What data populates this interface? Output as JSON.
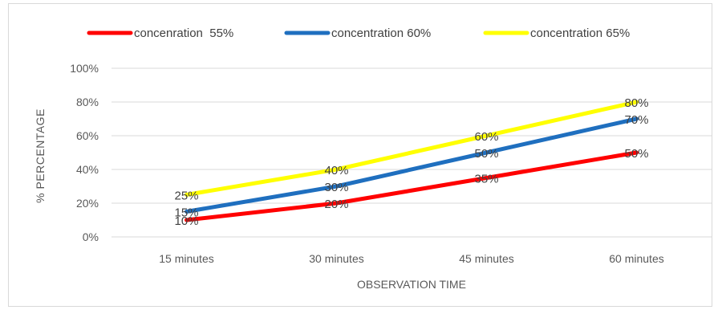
{
  "chart_data": {
    "type": "line",
    "categories": [
      "15 minutes",
      "30 minutes",
      "45 minutes",
      "60 minutes"
    ],
    "series": [
      {
        "name": "concenration  55%",
        "values": [
          10,
          20,
          35,
          50
        ],
        "color": "#ff0000",
        "labels": [
          "10%",
          "20%",
          "35%",
          "50%"
        ]
      },
      {
        "name": "concentration 60%",
        "values": [
          15,
          30,
          50,
          70
        ],
        "color": "#1f6fbf",
        "labels": [
          "15%",
          "30%",
          "50%",
          "70%"
        ]
      },
      {
        "name": "concentration 65%",
        "values": [
          25,
          40,
          60,
          80
        ],
        "color": "#ffff00",
        "labels": [
          "25%",
          "40%",
          "60%",
          "80%"
        ]
      }
    ],
    "xlabel": "OBSERVATION TIME",
    "ylabel": "% PERCENTAGE",
    "ylim": [
      0,
      100
    ],
    "yticks": [
      0,
      20,
      40,
      60,
      80,
      100
    ],
    "ytick_labels": [
      "0%",
      "20%",
      "40%",
      "60%",
      "80%",
      "100%"
    ],
    "grid": true,
    "legend_position": "top"
  }
}
